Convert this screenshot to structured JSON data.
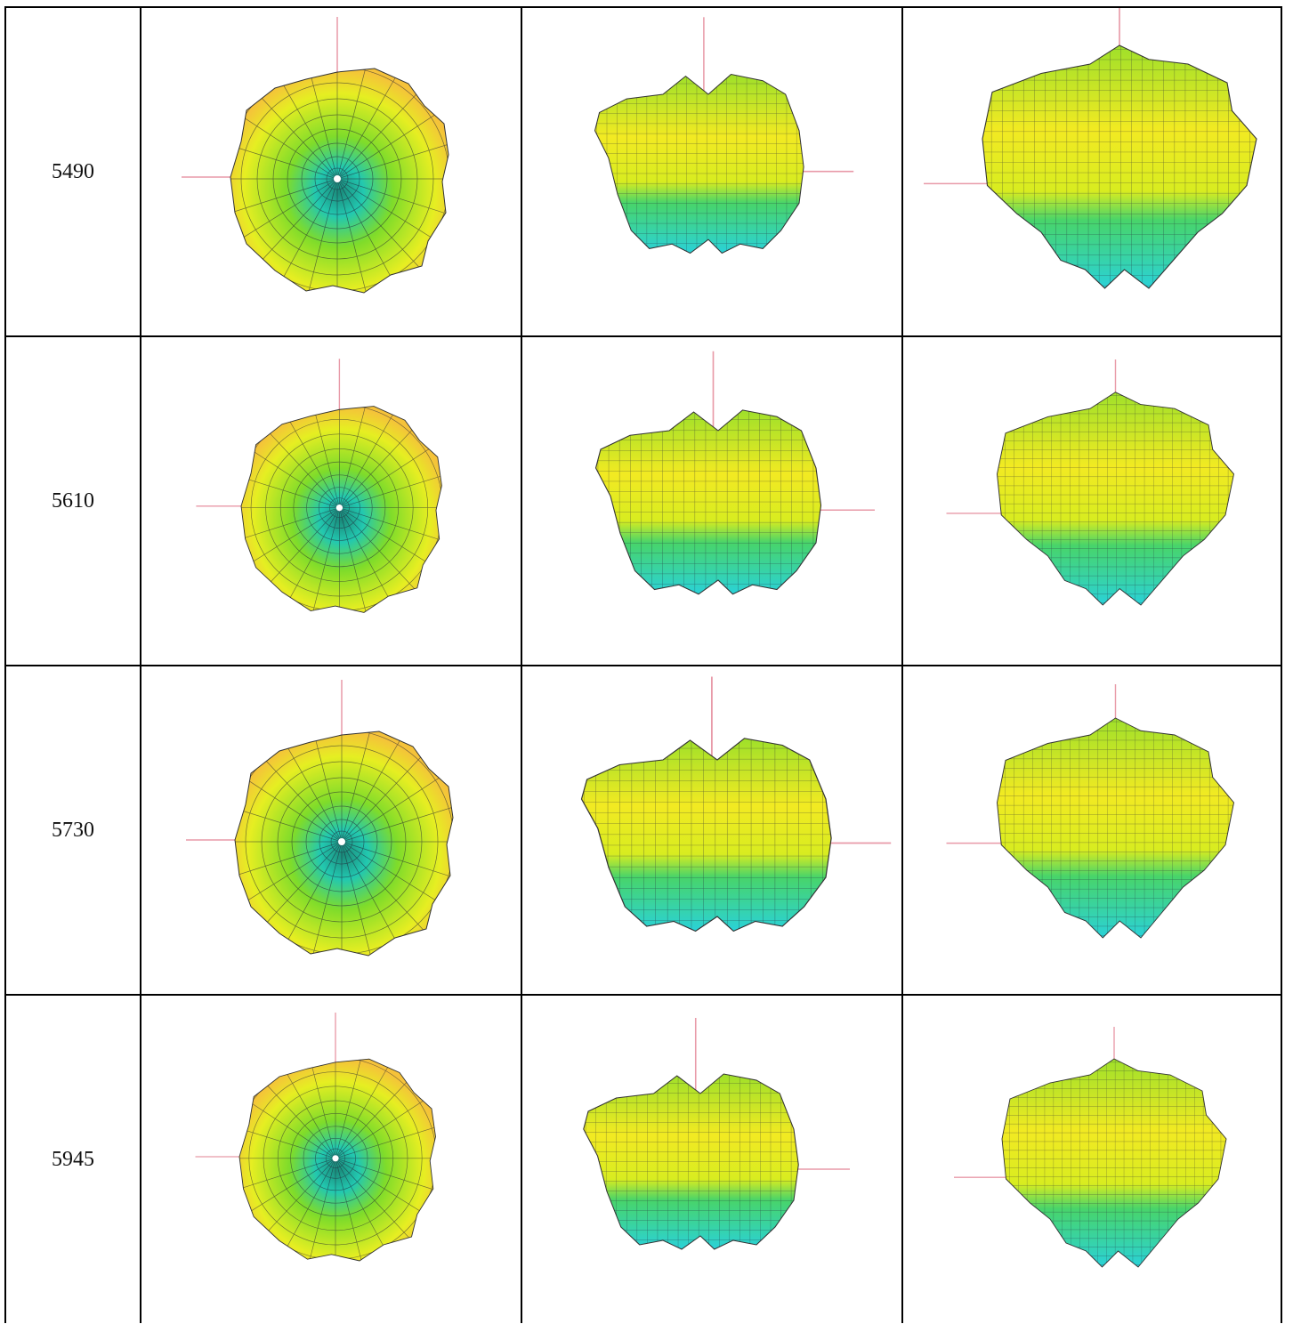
{
  "table": {
    "rows": [
      [
        "5490"
      ],
      [
        "5610"
      ],
      [
        "5730"
      ],
      [
        "5945"
      ]
    ]
  }
}
